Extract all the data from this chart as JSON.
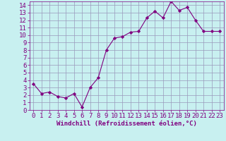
{
  "x": [
    0,
    1,
    2,
    3,
    4,
    5,
    6,
    7,
    8,
    9,
    10,
    11,
    12,
    13,
    14,
    15,
    16,
    17,
    18,
    19,
    20,
    21,
    22,
    23
  ],
  "y": [
    3.5,
    2.2,
    2.4,
    1.8,
    1.6,
    2.2,
    0.4,
    3.0,
    4.3,
    8.0,
    9.6,
    9.8,
    10.4,
    10.5,
    12.3,
    13.2,
    12.3,
    14.5,
    13.3,
    13.7,
    12.0,
    10.5,
    10.5,
    10.5
  ],
  "xlabel": "Windchill (Refroidissement éolien,°C)",
  "xlim": [
    -0.5,
    23.5
  ],
  "ylim": [
    0,
    14.5
  ],
  "yticks": [
    0,
    1,
    2,
    3,
    4,
    5,
    6,
    7,
    8,
    9,
    10,
    11,
    12,
    13,
    14
  ],
  "xticks": [
    0,
    1,
    2,
    3,
    4,
    5,
    6,
    7,
    8,
    9,
    10,
    11,
    12,
    13,
    14,
    15,
    16,
    17,
    18,
    19,
    20,
    21,
    22,
    23
  ],
  "line_color": "#800080",
  "marker_color": "#800080",
  "bg_color": "#c8f0f0",
  "grid_color": "#9999bb",
  "xlabel_color": "#800080",
  "tick_color": "#800080",
  "font_size": 6.5
}
